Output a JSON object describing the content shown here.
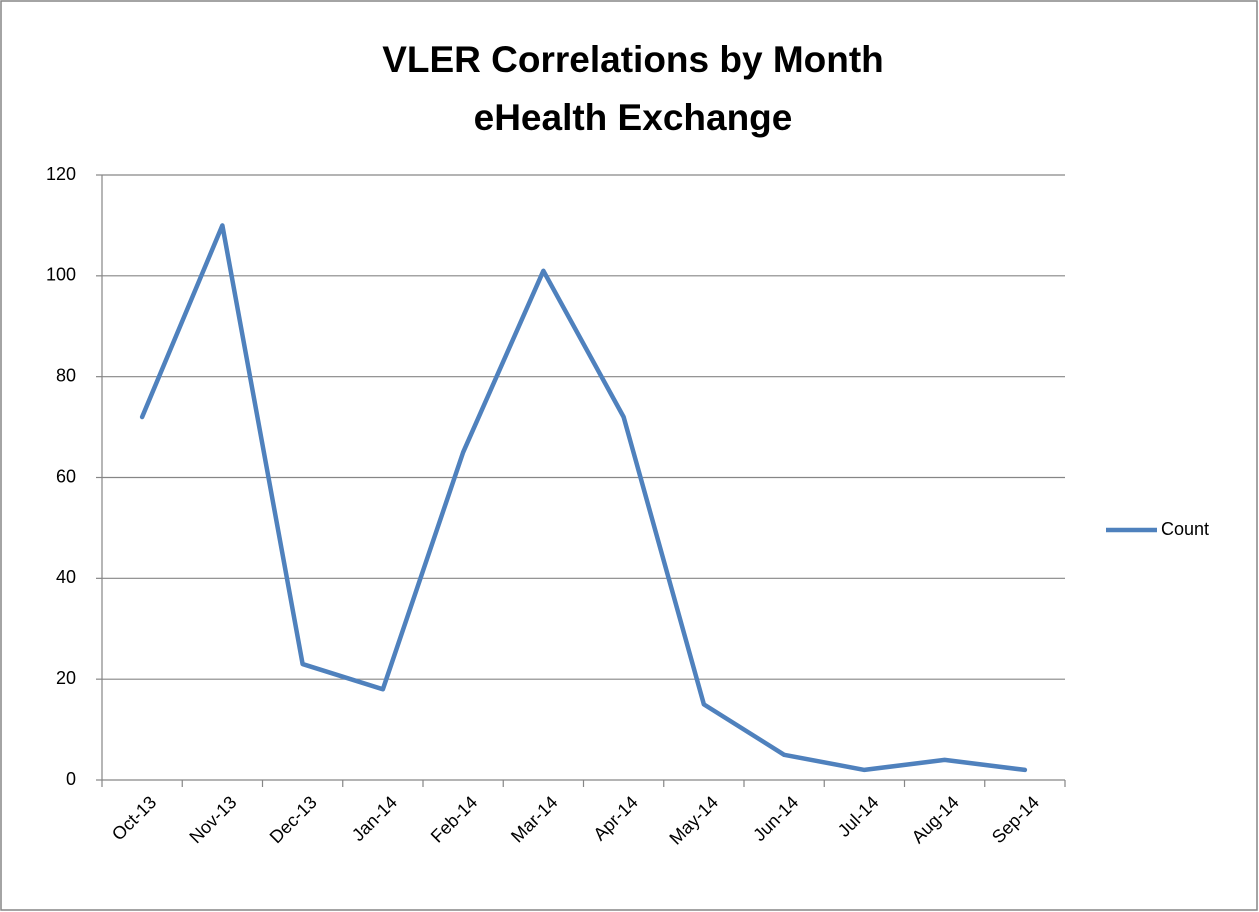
{
  "chart_data": {
    "type": "line",
    "title": "VLER Correlations by Month",
    "subtitle": "eHealth Exchange",
    "categories": [
      "Oct-13",
      "Nov-13",
      "Dec-13",
      "Jan-14",
      "Feb-14",
      "Mar-14",
      "Apr-14",
      "May-14",
      "Jun-14",
      "Jul-14",
      "Aug-14",
      "Sep-14"
    ],
    "series": [
      {
        "name": "Count",
        "color": "#4f81bd",
        "values": [
          72,
          110,
          23,
          18,
          65,
          101,
          72,
          15,
          5,
          2,
          4,
          2
        ]
      }
    ],
    "ylim": [
      0,
      120
    ],
    "yticks": [
      0,
      20,
      40,
      60,
      80,
      100,
      120
    ],
    "grid": true,
    "legend": "right"
  }
}
